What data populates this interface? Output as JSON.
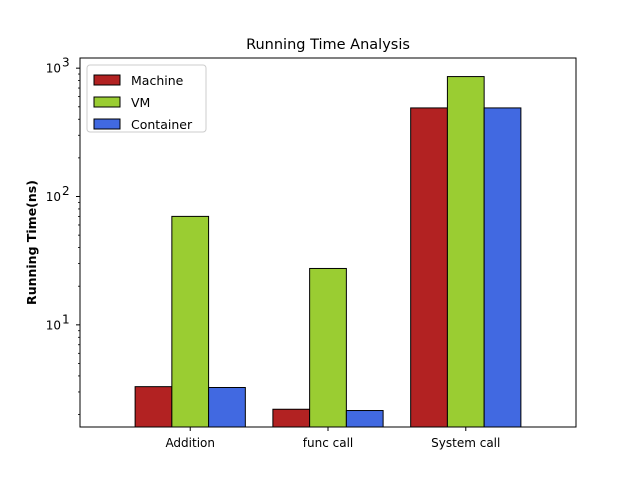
{
  "chart_data": {
    "type": "bar",
    "title": "Running Time Analysis",
    "xlabel": "",
    "ylabel": "Running Time(ns)",
    "yscale": "log",
    "ylim": [
      1.6,
      1200
    ],
    "yticks": [
      {
        "value": 10,
        "base": "10",
        "exp": "1"
      },
      {
        "value": 100,
        "base": "10",
        "exp": "2"
      },
      {
        "value": 1000,
        "base": "10",
        "exp": "3"
      }
    ],
    "categories": [
      "Addition",
      "func call",
      "System call"
    ],
    "series": [
      {
        "name": "Machine",
        "color": "#b22222",
        "values": [
          3.3,
          2.2,
          490
        ]
      },
      {
        "name": "VM",
        "color": "#9acd32",
        "values": [
          70,
          27.5,
          860
        ]
      },
      {
        "name": "Container",
        "color": "#4169e1",
        "values": [
          3.25,
          2.15,
          490
        ]
      }
    ],
    "grid": false,
    "legend_position": "top-left"
  }
}
